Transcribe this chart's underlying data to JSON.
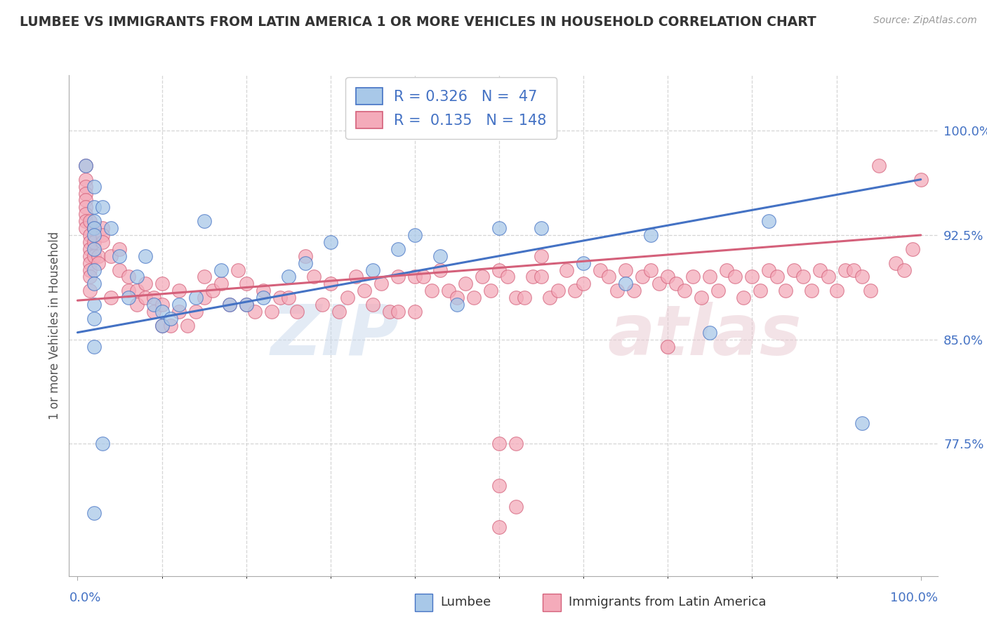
{
  "title": "LUMBEE VS IMMIGRANTS FROM LATIN AMERICA 1 OR MORE VEHICLES IN HOUSEHOLD CORRELATION CHART",
  "source": "Source: ZipAtlas.com",
  "ylabel": "1 or more Vehicles in Household",
  "ytick_labels": [
    "77.5%",
    "85.0%",
    "92.5%",
    "100.0%"
  ],
  "ytick_values": [
    0.775,
    0.85,
    0.925,
    1.0
  ],
  "legend_blue_R": "0.326",
  "legend_blue_N": " 47",
  "legend_pink_R": "0.135",
  "legend_pink_N": "148",
  "blue_color": "#A8C8E8",
  "pink_color": "#F4ABBA",
  "blue_line_color": "#4472C4",
  "pink_line_color": "#D4607A",
  "background_color": "#FFFFFF",
  "watermark_zip": "ZIP",
  "watermark_atlas": "atlas",
  "ylim_low": 0.68,
  "ylim_high": 1.04,
  "xlim_low": -0.01,
  "xlim_high": 1.02,
  "blue_points": [
    [
      0.01,
      0.975
    ],
    [
      0.02,
      0.96
    ],
    [
      0.02,
      0.945
    ],
    [
      0.02,
      0.935
    ],
    [
      0.02,
      0.93
    ],
    [
      0.02,
      0.925
    ],
    [
      0.02,
      0.915
    ],
    [
      0.02,
      0.9
    ],
    [
      0.02,
      0.89
    ],
    [
      0.02,
      0.875
    ],
    [
      0.02,
      0.865
    ],
    [
      0.02,
      0.845
    ],
    [
      0.03,
      0.945
    ],
    [
      0.04,
      0.93
    ],
    [
      0.05,
      0.91
    ],
    [
      0.06,
      0.88
    ],
    [
      0.07,
      0.895
    ],
    [
      0.08,
      0.91
    ],
    [
      0.09,
      0.875
    ],
    [
      0.1,
      0.87
    ],
    [
      0.1,
      0.86
    ],
    [
      0.11,
      0.865
    ],
    [
      0.12,
      0.875
    ],
    [
      0.14,
      0.88
    ],
    [
      0.15,
      0.935
    ],
    [
      0.17,
      0.9
    ],
    [
      0.18,
      0.875
    ],
    [
      0.02,
      0.725
    ],
    [
      0.03,
      0.775
    ],
    [
      0.2,
      0.875
    ],
    [
      0.22,
      0.88
    ],
    [
      0.25,
      0.895
    ],
    [
      0.27,
      0.905
    ],
    [
      0.3,
      0.92
    ],
    [
      0.35,
      0.9
    ],
    [
      0.38,
      0.915
    ],
    [
      0.4,
      0.925
    ],
    [
      0.43,
      0.91
    ],
    [
      0.45,
      0.875
    ],
    [
      0.5,
      0.93
    ],
    [
      0.55,
      0.93
    ],
    [
      0.6,
      0.905
    ],
    [
      0.65,
      0.89
    ],
    [
      0.68,
      0.925
    ],
    [
      0.75,
      0.855
    ],
    [
      0.82,
      0.935
    ],
    [
      0.93,
      0.79
    ]
  ],
  "pink_points": [
    [
      0.01,
      0.975
    ],
    [
      0.01,
      0.965
    ],
    [
      0.01,
      0.96
    ],
    [
      0.01,
      0.955
    ],
    [
      0.01,
      0.95
    ],
    [
      0.01,
      0.945
    ],
    [
      0.01,
      0.94
    ],
    [
      0.01,
      0.935
    ],
    [
      0.01,
      0.93
    ],
    [
      0.015,
      0.935
    ],
    [
      0.015,
      0.925
    ],
    [
      0.015,
      0.92
    ],
    [
      0.015,
      0.915
    ],
    [
      0.015,
      0.91
    ],
    [
      0.015,
      0.905
    ],
    [
      0.015,
      0.9
    ],
    [
      0.015,
      0.895
    ],
    [
      0.015,
      0.885
    ],
    [
      0.02,
      0.93
    ],
    [
      0.02,
      0.92
    ],
    [
      0.02,
      0.91
    ],
    [
      0.025,
      0.91
    ],
    [
      0.025,
      0.905
    ],
    [
      0.03,
      0.93
    ],
    [
      0.03,
      0.925
    ],
    [
      0.03,
      0.92
    ],
    [
      0.04,
      0.91
    ],
    [
      0.04,
      0.88
    ],
    [
      0.05,
      0.915
    ],
    [
      0.05,
      0.9
    ],
    [
      0.06,
      0.895
    ],
    [
      0.06,
      0.885
    ],
    [
      0.07,
      0.885
    ],
    [
      0.07,
      0.875
    ],
    [
      0.08,
      0.89
    ],
    [
      0.08,
      0.88
    ],
    [
      0.09,
      0.88
    ],
    [
      0.09,
      0.87
    ],
    [
      0.1,
      0.89
    ],
    [
      0.1,
      0.875
    ],
    [
      0.1,
      0.86
    ],
    [
      0.11,
      0.86
    ],
    [
      0.12,
      0.885
    ],
    [
      0.12,
      0.87
    ],
    [
      0.13,
      0.86
    ],
    [
      0.14,
      0.87
    ],
    [
      0.15,
      0.895
    ],
    [
      0.15,
      0.88
    ],
    [
      0.16,
      0.885
    ],
    [
      0.17,
      0.89
    ],
    [
      0.18,
      0.875
    ],
    [
      0.19,
      0.9
    ],
    [
      0.2,
      0.89
    ],
    [
      0.2,
      0.875
    ],
    [
      0.21,
      0.87
    ],
    [
      0.22,
      0.885
    ],
    [
      0.23,
      0.87
    ],
    [
      0.24,
      0.88
    ],
    [
      0.25,
      0.88
    ],
    [
      0.26,
      0.87
    ],
    [
      0.27,
      0.91
    ],
    [
      0.28,
      0.895
    ],
    [
      0.29,
      0.875
    ],
    [
      0.3,
      0.89
    ],
    [
      0.31,
      0.87
    ],
    [
      0.32,
      0.88
    ],
    [
      0.33,
      0.895
    ],
    [
      0.34,
      0.885
    ],
    [
      0.35,
      0.875
    ],
    [
      0.36,
      0.89
    ],
    [
      0.37,
      0.87
    ],
    [
      0.38,
      0.895
    ],
    [
      0.38,
      0.87
    ],
    [
      0.4,
      0.895
    ],
    [
      0.4,
      0.87
    ],
    [
      0.41,
      0.895
    ],
    [
      0.42,
      0.885
    ],
    [
      0.43,
      0.9
    ],
    [
      0.44,
      0.885
    ],
    [
      0.45,
      0.88
    ],
    [
      0.46,
      0.89
    ],
    [
      0.47,
      0.88
    ],
    [
      0.48,
      0.895
    ],
    [
      0.49,
      0.885
    ],
    [
      0.5,
      0.9
    ],
    [
      0.5,
      0.775
    ],
    [
      0.51,
      0.895
    ],
    [
      0.52,
      0.88
    ],
    [
      0.52,
      0.775
    ],
    [
      0.53,
      0.88
    ],
    [
      0.54,
      0.895
    ],
    [
      0.55,
      0.91
    ],
    [
      0.55,
      0.895
    ],
    [
      0.56,
      0.88
    ],
    [
      0.57,
      0.885
    ],
    [
      0.58,
      0.9
    ],
    [
      0.59,
      0.885
    ],
    [
      0.6,
      0.89
    ],
    [
      0.62,
      0.9
    ],
    [
      0.63,
      0.895
    ],
    [
      0.64,
      0.885
    ],
    [
      0.65,
      0.9
    ],
    [
      0.66,
      0.885
    ],
    [
      0.67,
      0.895
    ],
    [
      0.68,
      0.9
    ],
    [
      0.69,
      0.89
    ],
    [
      0.7,
      0.895
    ],
    [
      0.7,
      0.845
    ],
    [
      0.71,
      0.89
    ],
    [
      0.72,
      0.885
    ],
    [
      0.73,
      0.895
    ],
    [
      0.74,
      0.88
    ],
    [
      0.75,
      0.895
    ],
    [
      0.76,
      0.885
    ],
    [
      0.77,
      0.9
    ],
    [
      0.78,
      0.895
    ],
    [
      0.79,
      0.88
    ],
    [
      0.8,
      0.895
    ],
    [
      0.81,
      0.885
    ],
    [
      0.82,
      0.9
    ],
    [
      0.83,
      0.895
    ],
    [
      0.84,
      0.885
    ],
    [
      0.85,
      0.9
    ],
    [
      0.86,
      0.895
    ],
    [
      0.87,
      0.885
    ],
    [
      0.88,
      0.9
    ],
    [
      0.89,
      0.895
    ],
    [
      0.9,
      0.885
    ],
    [
      0.91,
      0.9
    ],
    [
      0.92,
      0.9
    ],
    [
      0.93,
      0.895
    ],
    [
      0.94,
      0.885
    ],
    [
      0.95,
      0.975
    ],
    [
      0.97,
      0.905
    ],
    [
      0.98,
      0.9
    ],
    [
      0.99,
      0.915
    ],
    [
      1.0,
      0.965
    ],
    [
      0.5,
      0.745
    ],
    [
      0.52,
      0.73
    ],
    [
      0.5,
      0.715
    ]
  ],
  "blue_trendline": [
    0.0,
    0.855,
    1.0,
    0.965
  ],
  "pink_trendline": [
    0.0,
    0.878,
    1.0,
    0.925
  ],
  "figsize": [
    14.06,
    8.92
  ],
  "dpi": 100
}
